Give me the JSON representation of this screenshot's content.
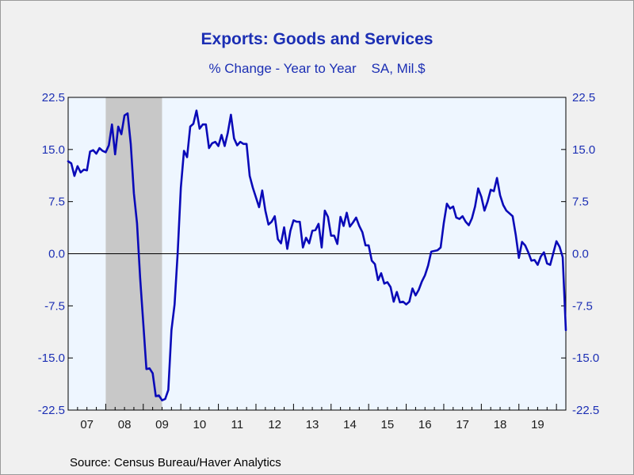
{
  "title": "Exports: Goods and Services",
  "subtitle": "% Change - Year to Year    SA, Mil.$",
  "source": "Source:  Census Bureau/Haver Analytics",
  "colors": {
    "line": "#0a0ab8",
    "axis_text": "#1c2fb4",
    "plot_bg": "#eef6ff",
    "recession": "#c8c8c8"
  },
  "chart_data": {
    "type": "line",
    "title": "Exports: Goods and Services",
    "subtitle": "% Change - Year to Year    SA, Mil.$",
    "ylim": [
      -22.5,
      22.5
    ],
    "y_ticks": [
      22.5,
      15.0,
      7.5,
      0.0,
      -7.5,
      -15.0,
      -22.5
    ],
    "y_tick_labels": [
      "22.5",
      "15.0",
      "7.5",
      "0.0",
      "-7.5",
      "-15.0",
      "-22.5"
    ],
    "x_tick_labels": [
      "07",
      "08",
      "09",
      "10",
      "11",
      "12",
      "13",
      "14",
      "15",
      "16",
      "17",
      "18",
      "19"
    ],
    "x_range": [
      "2007-01",
      "2020-04"
    ],
    "recession": {
      "start": "2008-01",
      "end": "2009-06"
    },
    "zero_line": true,
    "grid": false,
    "series": [
      {
        "start": "2007-01",
        "frequency": "monthly",
        "values": [
          13.3,
          13.0,
          11.2,
          12.6,
          11.7,
          12.1,
          12.0,
          14.7,
          14.9,
          14.4,
          15.2,
          14.8,
          14.6,
          15.6,
          18.6,
          14.3,
          18.3,
          17.2,
          19.9,
          20.2,
          15.8,
          8.7,
          4.4,
          -3.5,
          -10.0,
          -16.6,
          -16.5,
          -17.2,
          -20.5,
          -20.4,
          -21.1,
          -20.9,
          -19.6,
          -11.0,
          -7.3,
          0.2,
          9.5,
          14.8,
          13.9,
          18.3,
          18.7,
          20.6,
          18.0,
          18.6,
          18.6,
          15.2,
          15.9,
          16.1,
          15.5,
          17.1,
          15.5,
          17.4,
          20.0,
          16.6,
          15.6,
          16.1,
          15.8,
          15.8,
          11.2,
          9.5,
          8.1,
          6.7,
          9.1,
          6.2,
          4.2,
          4.6,
          5.4,
          2.1,
          1.5,
          3.8,
          0.7,
          3.3,
          4.8,
          4.6,
          4.6,
          0.9,
          2.3,
          1.5,
          3.3,
          3.4,
          4.3,
          0.9,
          6.2,
          5.3,
          2.6,
          2.6,
          1.4,
          5.3,
          4.0,
          5.9,
          3.9,
          4.5,
          5.2,
          4.0,
          3.1,
          1.2,
          1.2,
          -1.0,
          -1.5,
          -3.8,
          -2.8,
          -4.3,
          -4.1,
          -4.8,
          -6.9,
          -5.5,
          -7.0,
          -6.9,
          -7.3,
          -6.9,
          -5.0,
          -6.0,
          -5.2,
          -4.0,
          -3.1,
          -1.7,
          0.3,
          0.4,
          0.5,
          0.9,
          4.4,
          7.2,
          6.5,
          6.8,
          5.2,
          5.0,
          5.4,
          4.6,
          4.1,
          5.1,
          6.8,
          9.4,
          8.2,
          6.2,
          7.5,
          9.2,
          9.0,
          10.9,
          8.4,
          7.0,
          6.2,
          5.8,
          5.4,
          2.7,
          -0.6,
          1.7,
          1.2,
          0.2,
          -1.0,
          -0.9,
          -1.6,
          -0.4,
          0.2,
          -1.4,
          -1.6,
          0.1,
          1.8,
          1.0,
          -0.5,
          -11.0
        ]
      }
    ]
  }
}
